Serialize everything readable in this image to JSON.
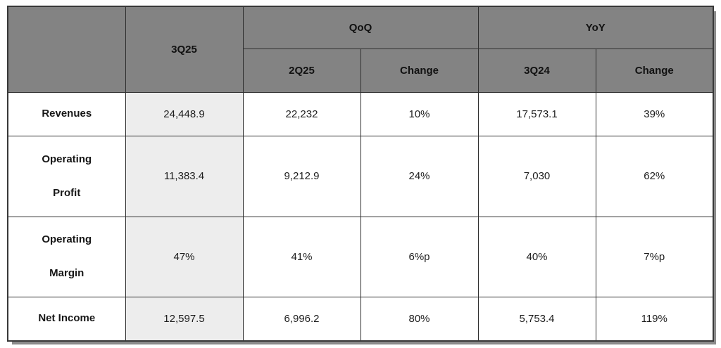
{
  "chart_data": {
    "type": "table",
    "header": {
      "corner": "",
      "period_current": "3Q25",
      "group_qoq": "QoQ",
      "group_yoy": "YoY",
      "sub_qoq_period": "2Q25",
      "sub_qoq_change": "Change",
      "sub_yoy_period": "3Q24",
      "sub_yoy_change": "Change"
    },
    "rows": [
      {
        "label": "Revenues",
        "values": [
          "24,448.9",
          "22,232",
          "10%",
          "17,573.1",
          "39%"
        ]
      },
      {
        "label": "Operating\nProfit",
        "values": [
          "11,383.4",
          "9,212.9",
          "24%",
          "7,030",
          "62%"
        ]
      },
      {
        "label": "Operating\nMargin",
        "values": [
          "47%",
          "41%",
          "6%p",
          "40%",
          "7%p"
        ]
      },
      {
        "label": "Net Income",
        "values": [
          "12,597.5",
          "6,996.2",
          "80%",
          "5,753.4",
          "119%"
        ]
      }
    ]
  },
  "colors": {
    "header_bg": "#838383",
    "highlight_column_bg": "#ededed",
    "border": "#2f2f2f",
    "text": "#1d1d1d",
    "bottom_shadow": "#8b8b8b",
    "page_bg": "#ffffff"
  }
}
